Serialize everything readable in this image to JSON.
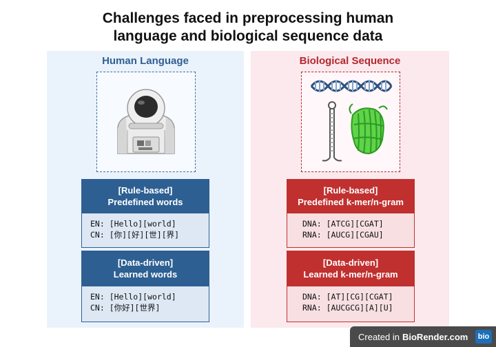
{
  "title_line1": "Challenges faced in preprocessing human",
  "title_line2": "language and biological sequence data",
  "left": {
    "heading": "Human Language",
    "illustration": "astronaut-icon",
    "rule_box": {
      "head_line1": "[Rule-based]",
      "head_line2": "Predefined words",
      "line1": "EN: [Hello][world]",
      "line2": "CN: [你][好][世][界]"
    },
    "data_box": {
      "head_line1": "[Data-driven]",
      "head_line2": "Learned words",
      "line1": "EN: [Hello][world]",
      "line2": "CN: [你好][世界]"
    },
    "accent": "#2d5f92"
  },
  "right": {
    "heading": "Biological Sequence",
    "illustration": "dna-rna-protein-icon",
    "rule_box": {
      "head_line1": "[Rule-based]",
      "head_line2": "Predefined k-mer/n-gram",
      "line1": "DNA: [ATCG][CGAT]",
      "line2": "RNA: [AUCG][CGAU]"
    },
    "data_box": {
      "head_line1": "[Data-driven]",
      "head_line2": "Learned k-mer/n-gram",
      "line1": "DNA: [AT][CG][CGAT]",
      "line2": "RNA: [AUCGCG][A][U]"
    },
    "accent": "#c0302f"
  },
  "badge": {
    "prefix": "Created in",
    "brand": "BioRender.com",
    "logo": "bio"
  }
}
